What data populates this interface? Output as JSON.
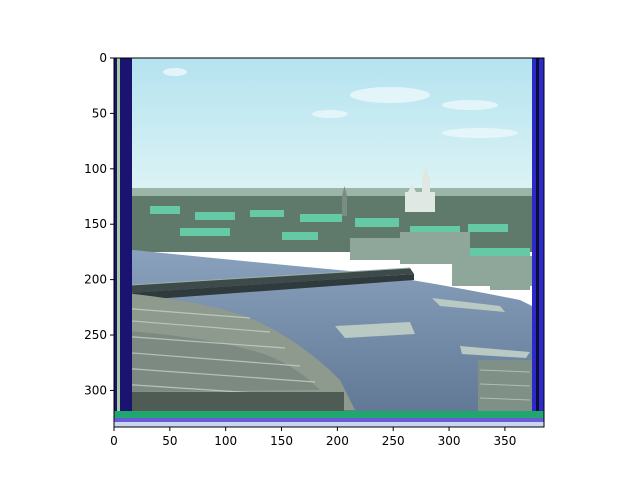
{
  "figure": {
    "x_ticks": [
      "0",
      "50",
      "100",
      "150",
      "200",
      "250",
      "300",
      "350"
    ],
    "y_ticks": [
      "0",
      "50",
      "100",
      "150",
      "200",
      "250",
      "300"
    ],
    "x_tick_values": [
      0,
      50,
      100,
      150,
      200,
      250,
      300,
      350
    ],
    "y_tick_values": [
      0,
      50,
      100,
      150,
      200,
      250,
      300
    ],
    "x_range": [
      0,
      385
    ],
    "y_range": [
      0,
      333
    ],
    "y_inverted": true
  },
  "photo": {
    "subject": "panorama of a river town: timber log rafts in foreground, river with a long wooden bridge, buildings and church spires along the far bank, flat horizon and pale blue sky",
    "colors": {
      "sky": "#c9eef6",
      "sky_top": "#b4e3f0",
      "water": "#6f87a6",
      "logs": "#8e9a8e",
      "town": "#5f7a6a",
      "roof": "#66c9a6",
      "border_left": "#1a1470",
      "border_right": "#2c2ac8",
      "border_bottom": "#1fa76d"
    }
  }
}
